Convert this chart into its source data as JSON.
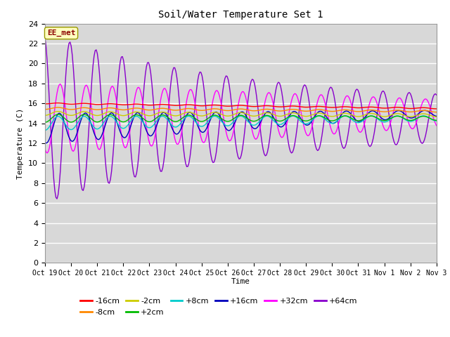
{
  "title": "Soil/Water Temperature Set 1",
  "xlabel": "Time",
  "ylabel": "Temperature (C)",
  "ylim": [
    0,
    24
  ],
  "yticks": [
    0,
    2,
    4,
    6,
    8,
    10,
    12,
    14,
    16,
    18,
    20,
    22,
    24
  ],
  "annotation": "EE_met",
  "annotation_color": "#8B0000",
  "annotation_bg": "#FFFFC0",
  "bg_color": "#D8D8D8",
  "colors": {
    "-16cm": "#FF0000",
    "-8cm": "#FF8800",
    "-2cm": "#CCCC00",
    "+2cm": "#00BB00",
    "+8cm": "#00CCCC",
    "+16cm": "#0000BB",
    "+32cm": "#FF00FF",
    "+64cm": "#8800CC"
  },
  "xtick_labels": [
    "Oct 19",
    "Oct 20",
    "Oct 21",
    "Oct 22",
    "Oct 23",
    "Oct 24",
    "Oct 25",
    "Oct 26",
    "Oct 27",
    "Oct 28",
    "Oct 29",
    "Oct 30",
    "Oct 31",
    "Nov 1",
    "Nov 2",
    "Nov 3"
  ],
  "legend_row1": [
    "-16cm",
    "-8cm",
    "-2cm",
    "+2cm",
    "+8cm",
    "+16cm"
  ],
  "legend_row2": [
    "+32cm",
    "+64cm"
  ]
}
